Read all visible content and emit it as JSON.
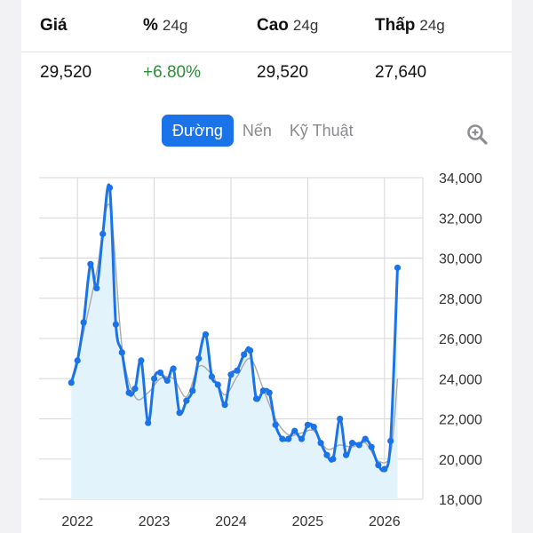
{
  "stats": {
    "headers": [
      {
        "label": "Giá",
        "period": ""
      },
      {
        "label": "%",
        "period": "24g"
      },
      {
        "label": "Cao",
        "period": "24g"
      },
      {
        "label": "Thấp",
        "period": "24g"
      }
    ],
    "values": [
      "29,520",
      "+6.80%",
      "29,520",
      "27,640"
    ]
  },
  "tabs": [
    "Đường",
    "Nến",
    "Kỹ Thuật"
  ],
  "active_tab": "Đường",
  "icons": {
    "zoom": "zoom-in-icon"
  },
  "colors": {
    "accent": "#1a73e8",
    "positive": "#2e8b3a",
    "area_fill": "#e3f3fb",
    "smooth_line": "#a9a9a9"
  },
  "chart_data": {
    "type": "line",
    "title": "",
    "xlabel": "",
    "ylabel": "",
    "x_ticks": [
      "2022",
      "2023",
      "2024",
      "2025",
      "2026"
    ],
    "y_ticks": [
      "34,000",
      "32,000",
      "30,000",
      "28,000",
      "26,000",
      "24,000",
      "22,000",
      "20,000",
      "18,000"
    ],
    "ylim": [
      18000,
      34000
    ],
    "xlim": [
      2021.5,
      2026.5
    ],
    "grid": true,
    "y_axis_position": "right",
    "series": [
      {
        "x": [
          2021.92,
          2022.0,
          2022.08,
          2022.17,
          2022.25,
          2022.33,
          2022.42,
          2022.5,
          2022.58,
          2022.67,
          2022.75,
          2022.83,
          2022.92,
          2023.0,
          2023.08,
          2023.17,
          2023.25,
          2023.33,
          2023.42,
          2023.5,
          2023.58,
          2023.67,
          2023.75,
          2023.83,
          2023.92,
          2024.0,
          2024.08,
          2024.17,
          2024.25,
          2024.33,
          2024.42,
          2024.5,
          2024.58,
          2024.67,
          2024.75,
          2024.83,
          2024.92,
          2025.0,
          2025.08,
          2025.17,
          2025.25,
          2025.33,
          2025.42,
          2025.5,
          2025.58,
          2025.67,
          2025.75,
          2025.83,
          2025.92,
          2026.0,
          2026.08,
          2026.17
        ],
        "values": [
          23800,
          24900,
          26800,
          29700,
          28500,
          31200,
          33500,
          26700,
          25300,
          23300,
          23500,
          24900,
          21800,
          24000,
          24300,
          23900,
          24500,
          22300,
          22900,
          23400,
          25000,
          26200,
          24100,
          23700,
          22700,
          24200,
          24400,
          25200,
          25400,
          23000,
          23400,
          23300,
          21700,
          21000,
          21000,
          21400,
          21000,
          21700,
          21600,
          20800,
          20200,
          20000,
          22000,
          20200,
          20800,
          20700,
          21000,
          20600,
          19700,
          19500,
          20900,
          29520
        ]
      },
      {
        "x": [
          2021.92,
          2022.08,
          2022.25,
          2022.42,
          2022.58,
          2022.75,
          2022.92,
          2023.08,
          2023.25,
          2023.42,
          2023.58,
          2023.75,
          2023.92,
          2024.08,
          2024.25,
          2024.42,
          2024.58,
          2024.75,
          2024.92,
          2025.08,
          2025.25,
          2025.42,
          2025.58,
          2025.75,
          2025.92,
          2026.08,
          2026.17
        ],
        "values": [
          23900,
          26300,
          29300,
          32600,
          25600,
          23100,
          23300,
          24000,
          24000,
          23100,
          24600,
          24200,
          23200,
          24100,
          25000,
          23500,
          22000,
          21200,
          21300,
          21400,
          20500,
          20700,
          20600,
          20800,
          19900,
          20300,
          24000
        ]
      }
    ]
  }
}
